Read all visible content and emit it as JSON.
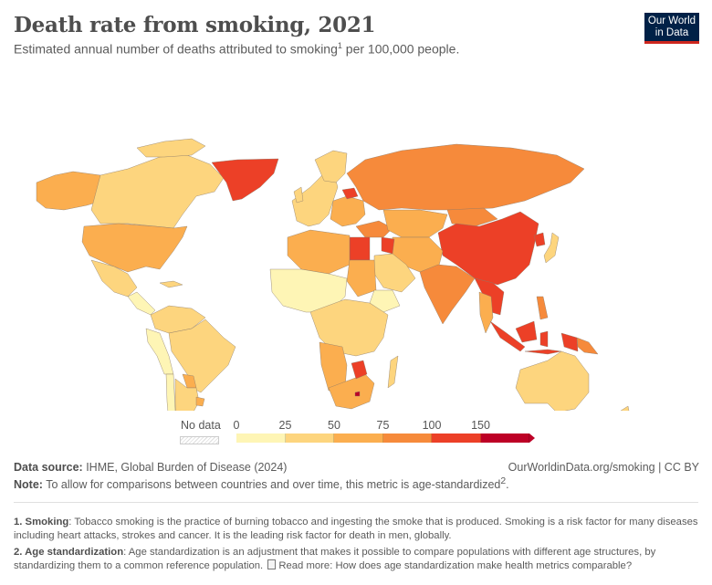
{
  "header": {
    "title": "Death rate from smoking, 2021",
    "subtitle": "Estimated annual number of deaths attributed to smoking",
    "subtitle_sup": "1",
    "subtitle_tail": " per 100,000 people.",
    "logo_line1": "Our World",
    "logo_line2": "in Data"
  },
  "legend": {
    "no_data_label": "No data",
    "ticks": [
      "0",
      "25",
      "50",
      "75",
      "100",
      "150"
    ],
    "bins": [
      {
        "from": 0,
        "to": 25,
        "color": "#fef5b5"
      },
      {
        "from": 25,
        "to": 50,
        "color": "#fdd57e"
      },
      {
        "from": 50,
        "to": 75,
        "color": "#fbae4f"
      },
      {
        "from": 75,
        "to": 100,
        "color": "#f68a3b"
      },
      {
        "from": 100,
        "to": 150,
        "color": "#ec4027"
      },
      {
        "from": 150,
        "to": null,
        "color": "#bd0026"
      }
    ]
  },
  "chart_data": {
    "type": "choropleth",
    "title": "Death rate from smoking, 2021",
    "subtitle": "Estimated annual number of deaths attributed to smoking per 100,000 people.",
    "legend_placement": "bottom",
    "color_scale": {
      "breaks": [
        0,
        25,
        50,
        75,
        100,
        150
      ],
      "no_data": true
    },
    "regions": [
      {
        "name": "Greenland",
        "bin": "100-150"
      },
      {
        "name": "Canada",
        "bin": "25-50"
      },
      {
        "name": "Alaska (USA)",
        "bin": "50-75"
      },
      {
        "name": "United States",
        "bin": "50-75"
      },
      {
        "name": "Mexico",
        "bin": "25-50"
      },
      {
        "name": "Central America",
        "bin": "0-25"
      },
      {
        "name": "Colombia / Venezuela / Guianas",
        "bin": "25-50"
      },
      {
        "name": "Ecuador / Peru / Bolivia",
        "bin": "0-25"
      },
      {
        "name": "Brazil",
        "bin": "25-50"
      },
      {
        "name": "Paraguay",
        "bin": "50-75"
      },
      {
        "name": "Uruguay",
        "bin": "50-75"
      },
      {
        "name": "Argentina",
        "bin": "25-50"
      },
      {
        "name": "Chile",
        "bin": "0-25"
      },
      {
        "name": "Western Europe",
        "bin": "25-50"
      },
      {
        "name": "Eastern Europe",
        "bin": "50-75"
      },
      {
        "name": "Belarus",
        "bin": "100-150"
      },
      {
        "name": "Russia",
        "bin": "75-100"
      },
      {
        "name": "Turkey / Caucasus",
        "bin": "75-100"
      },
      {
        "name": "Kazakhstan / Central Asia",
        "bin": "50-75"
      },
      {
        "name": "Mongolia",
        "bin": "75-100"
      },
      {
        "name": "China",
        "bin": "100-150"
      },
      {
        "name": "North Korea",
        "bin": "100-150"
      },
      {
        "name": "Japan",
        "bin": "25-50"
      },
      {
        "name": "India / South Asia",
        "bin": "75-100"
      },
      {
        "name": "Myanmar / Vietnam",
        "bin": "100-150"
      },
      {
        "name": "Thailand / Cambodia",
        "bin": "50-75"
      },
      {
        "name": "Indonesia",
        "bin": "100-150"
      },
      {
        "name": "Papua New Guinea",
        "bin": "75-100"
      },
      {
        "name": "Philippines",
        "bin": "75-100"
      },
      {
        "name": "Australia",
        "bin": "25-50"
      },
      {
        "name": "New Zealand",
        "bin": "25-50"
      },
      {
        "name": "Egypt",
        "bin": "100-150"
      },
      {
        "name": "Iraq",
        "bin": "100-150"
      },
      {
        "name": "Saudi Arabia / Gulf",
        "bin": "25-50"
      },
      {
        "name": "Iran / Afghanistan / Pakistan",
        "bin": "50-75"
      },
      {
        "name": "North Africa (Algeria/Libya)",
        "bin": "50-75"
      },
      {
        "name": "West Africa / Sahel",
        "bin": "0-25"
      },
      {
        "name": "Sudan",
        "bin": "50-75"
      },
      {
        "name": "Ethiopia",
        "bin": "0-25"
      },
      {
        "name": "Central/East Africa",
        "bin": "25-50"
      },
      {
        "name": "Angola / Namibia",
        "bin": "50-75"
      },
      {
        "name": "Zimbabwe",
        "bin": "100-150"
      },
      {
        "name": "South Africa",
        "bin": "50-75"
      },
      {
        "name": "Lesotho",
        "bin": "150+"
      },
      {
        "name": "Madagascar",
        "bin": "25-50"
      }
    ]
  },
  "footer": {
    "source_label": "Data source:",
    "source_text": " IHME, Global Burden of Disease (2024)",
    "url_text": "OurWorldinData.org/smoking | CC BY",
    "note_label": "Note:",
    "note_text": " To allow for comparisons between countries and over time, this metric is age-standardized",
    "note_sup": "2",
    "note_end": "."
  },
  "footnotes": {
    "fn1_label": "1. Smoking",
    "fn1_text": ": Tobacco smoking is the practice of burning tobacco and ingesting the smoke that is produced. Smoking is a risk factor for many diseases including heart attacks, strokes and cancer. It is the leading risk factor for death in men, globally.",
    "fn2_label": "2. Age standardization",
    "fn2_text": ": Age standardization is an adjustment that makes it possible to compare populations with different age structures, by standardizing them to a common reference population.",
    "fn2_link": "Read more: How does age standardization make health metrics comparable?"
  }
}
